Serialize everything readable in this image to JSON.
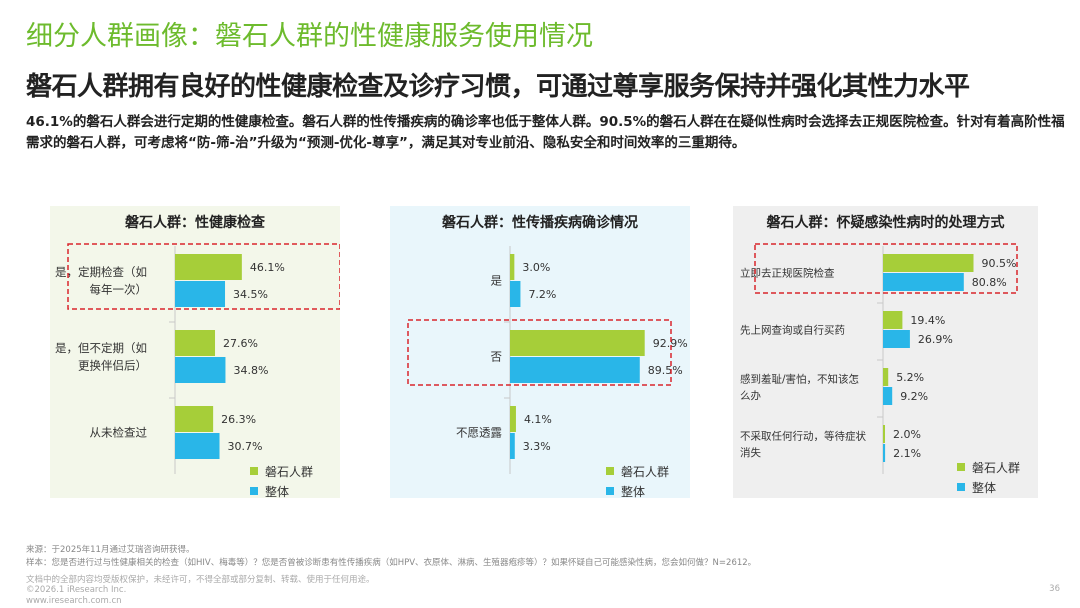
{
  "page": {
    "title": "细分人群画像：磐石人群的性健康服务使用情况",
    "subtitle": "磐石人群拥有良好的性健康检查及诊疗习惯，可通过尊享服务保持并强化其性力水平",
    "description": "46.1%的磐石人群会进行定期的性健康检查。磐石人群的性传播疾病的确诊率也低于整体人群。90.5%的磐石人群在在疑似性病时会选择去正规医院检查。针对有着高阶性福需求的磐石人群，可考虑将“防-筛-治”升级为“预测-优化-尊享”，满足其对专业前沿、隐私安全和时间效率的三重期待。"
  },
  "colors": {
    "title_green": "#6dbb2d",
    "series_segment": "#a6ce39",
    "series_overall": "#29b6e8",
    "panel1_bg": "#f3f7ea",
    "panel2_bg": "#e9f6fb",
    "panel3_bg": "#efefef",
    "highlight_border": "#d9262c"
  },
  "legend": {
    "segment": "磐石人群",
    "overall": "整体"
  },
  "chart_data": [
    {
      "type": "bar",
      "orientation": "horizontal",
      "title": "磐石人群：性健康检查",
      "categories": [
        "是，定期检查（如每年一次）",
        "是，但不定期（如更换伴侣后）",
        "从未检查过"
      ],
      "category_lines": [
        [
          "是，定期检查（如",
          "每年一次）"
        ],
        [
          "是，但不定期（如",
          "更换伴侣后）"
        ],
        [
          "从未检查过"
        ]
      ],
      "series": [
        {
          "name": "磐石人群",
          "values": [
            46.1,
            27.6,
            26.3
          ],
          "labels": [
            "46.1%",
            "27.6%",
            "26.3%"
          ]
        },
        {
          "name": "整体",
          "values": [
            34.5,
            34.8,
            30.7
          ],
          "labels": [
            "34.5%",
            "34.8%",
            "30.7%"
          ]
        }
      ],
      "highlight_category": 0,
      "xlim": [
        0,
        100
      ],
      "legend_position": "bottom-right"
    },
    {
      "type": "bar",
      "orientation": "horizontal",
      "title": "磐石人群：性传播疾病确诊情况",
      "categories": [
        "是",
        "否",
        "不愿透露"
      ],
      "category_lines": [
        [
          "是"
        ],
        [
          "否"
        ],
        [
          "不愿透露"
        ]
      ],
      "series": [
        {
          "name": "磐石人群",
          "values": [
            3.0,
            92.9,
            4.1
          ],
          "labels": [
            "3.0%",
            "92.9%",
            "4.1%"
          ]
        },
        {
          "name": "整体",
          "values": [
            7.2,
            89.5,
            3.3
          ],
          "labels": [
            "7.2%",
            "89.5%",
            "3.3%"
          ]
        }
      ],
      "highlight_category": 1,
      "xlim": [
        0,
        100
      ],
      "legend_position": "bottom-right"
    },
    {
      "type": "bar",
      "orientation": "horizontal",
      "title": "磐石人群：怀疑感染性病时的处理方式",
      "categories": [
        "立即去正规医院检查",
        "先上网查询或自行买药",
        "感到羞耻/害怕，不知该怎么办",
        "不采取任何行动，等待症状消失"
      ],
      "category_lines": [
        [
          "立即去正规医院检查"
        ],
        [
          "先上网查询或自行买药"
        ],
        [
          "感到羞耻/害怕，不知该怎",
          "么办"
        ],
        [
          "不采取任何行动，等待症状",
          "消失"
        ]
      ],
      "series": [
        {
          "name": "磐石人群",
          "values": [
            90.5,
            19.4,
            5.2,
            2.0
          ],
          "labels": [
            "90.5%",
            "19.4%",
            "5.2%",
            "2.0%"
          ]
        },
        {
          "name": "整体",
          "values": [
            80.8,
            26.9,
            9.2,
            2.1
          ],
          "labels": [
            "80.8%",
            "26.9%",
            "9.2%",
            "2.1%"
          ]
        }
      ],
      "highlight_category": 0,
      "xlim": [
        0,
        100
      ],
      "legend_position": "bottom-right"
    }
  ],
  "footer": {
    "source": "来源：于2025年11月通过艾瑞咨询研获得。",
    "sample": "样本：您是否进行过与性健康相关的检查（如HIV、梅毒等）？您是否曾被诊断患有性传播疾病（如HPV、衣原体、淋病、生殖器疱疹等）？如果怀疑自己可能感染性病，您会如何做？N=2612。",
    "copyright_note": "文档中的全部内容均受版权保护，未经许可，不得全部或部分复制、转载、使用于任何用途。",
    "company": "©2026.1 iResearch Inc.",
    "website": "www.iresearch.com.cn",
    "page_number": "36"
  }
}
